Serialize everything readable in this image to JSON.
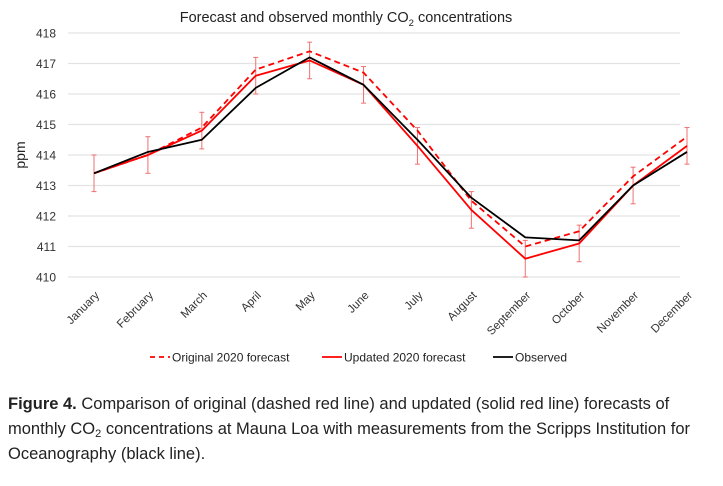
{
  "chart_data": {
    "type": "line",
    "title": "Forecast and observed monthly CO",
    "title_subscript": "2",
    "title_suffix": " concentrations",
    "xlabel": "",
    "ylabel": "ppm",
    "ylim": [
      410,
      418
    ],
    "yticks": [
      410,
      411,
      412,
      413,
      414,
      415,
      416,
      417,
      418
    ],
    "grid": true,
    "legend_position": "bottom",
    "categories": [
      "January",
      "February",
      "March",
      "April",
      "May",
      "June",
      "July",
      "August",
      "September",
      "October",
      "November",
      "December"
    ],
    "series": [
      {
        "name": "Original 2020 forecast",
        "style": "dashed",
        "color": "#ff0000",
        "values": [
          413.4,
          414.0,
          414.9,
          416.8,
          417.4,
          416.7,
          414.8,
          412.5,
          411.0,
          411.5,
          413.3,
          414.6
        ]
      },
      {
        "name": "Updated 2020 forecast",
        "style": "solid",
        "color": "#ff0000",
        "values": [
          413.4,
          414.0,
          414.8,
          416.6,
          417.1,
          416.3,
          414.3,
          412.2,
          410.6,
          411.1,
          413.0,
          414.3
        ],
        "error": 0.6
      },
      {
        "name": "Observed",
        "style": "solid",
        "color": "#000000",
        "values": [
          413.4,
          414.1,
          414.5,
          416.2,
          417.2,
          416.3,
          414.5,
          412.6,
          411.3,
          411.2,
          413.0,
          414.1
        ]
      }
    ]
  },
  "caption": {
    "label": "Figure 4.",
    "text_1": " Comparison of original (dashed red line) and updated (solid red line) forecasts of monthly CO",
    "sub": "2",
    "text_2": " concentrations at Mauna Loa with measurements from the Scripps Institution for Oceanography (black line)."
  }
}
